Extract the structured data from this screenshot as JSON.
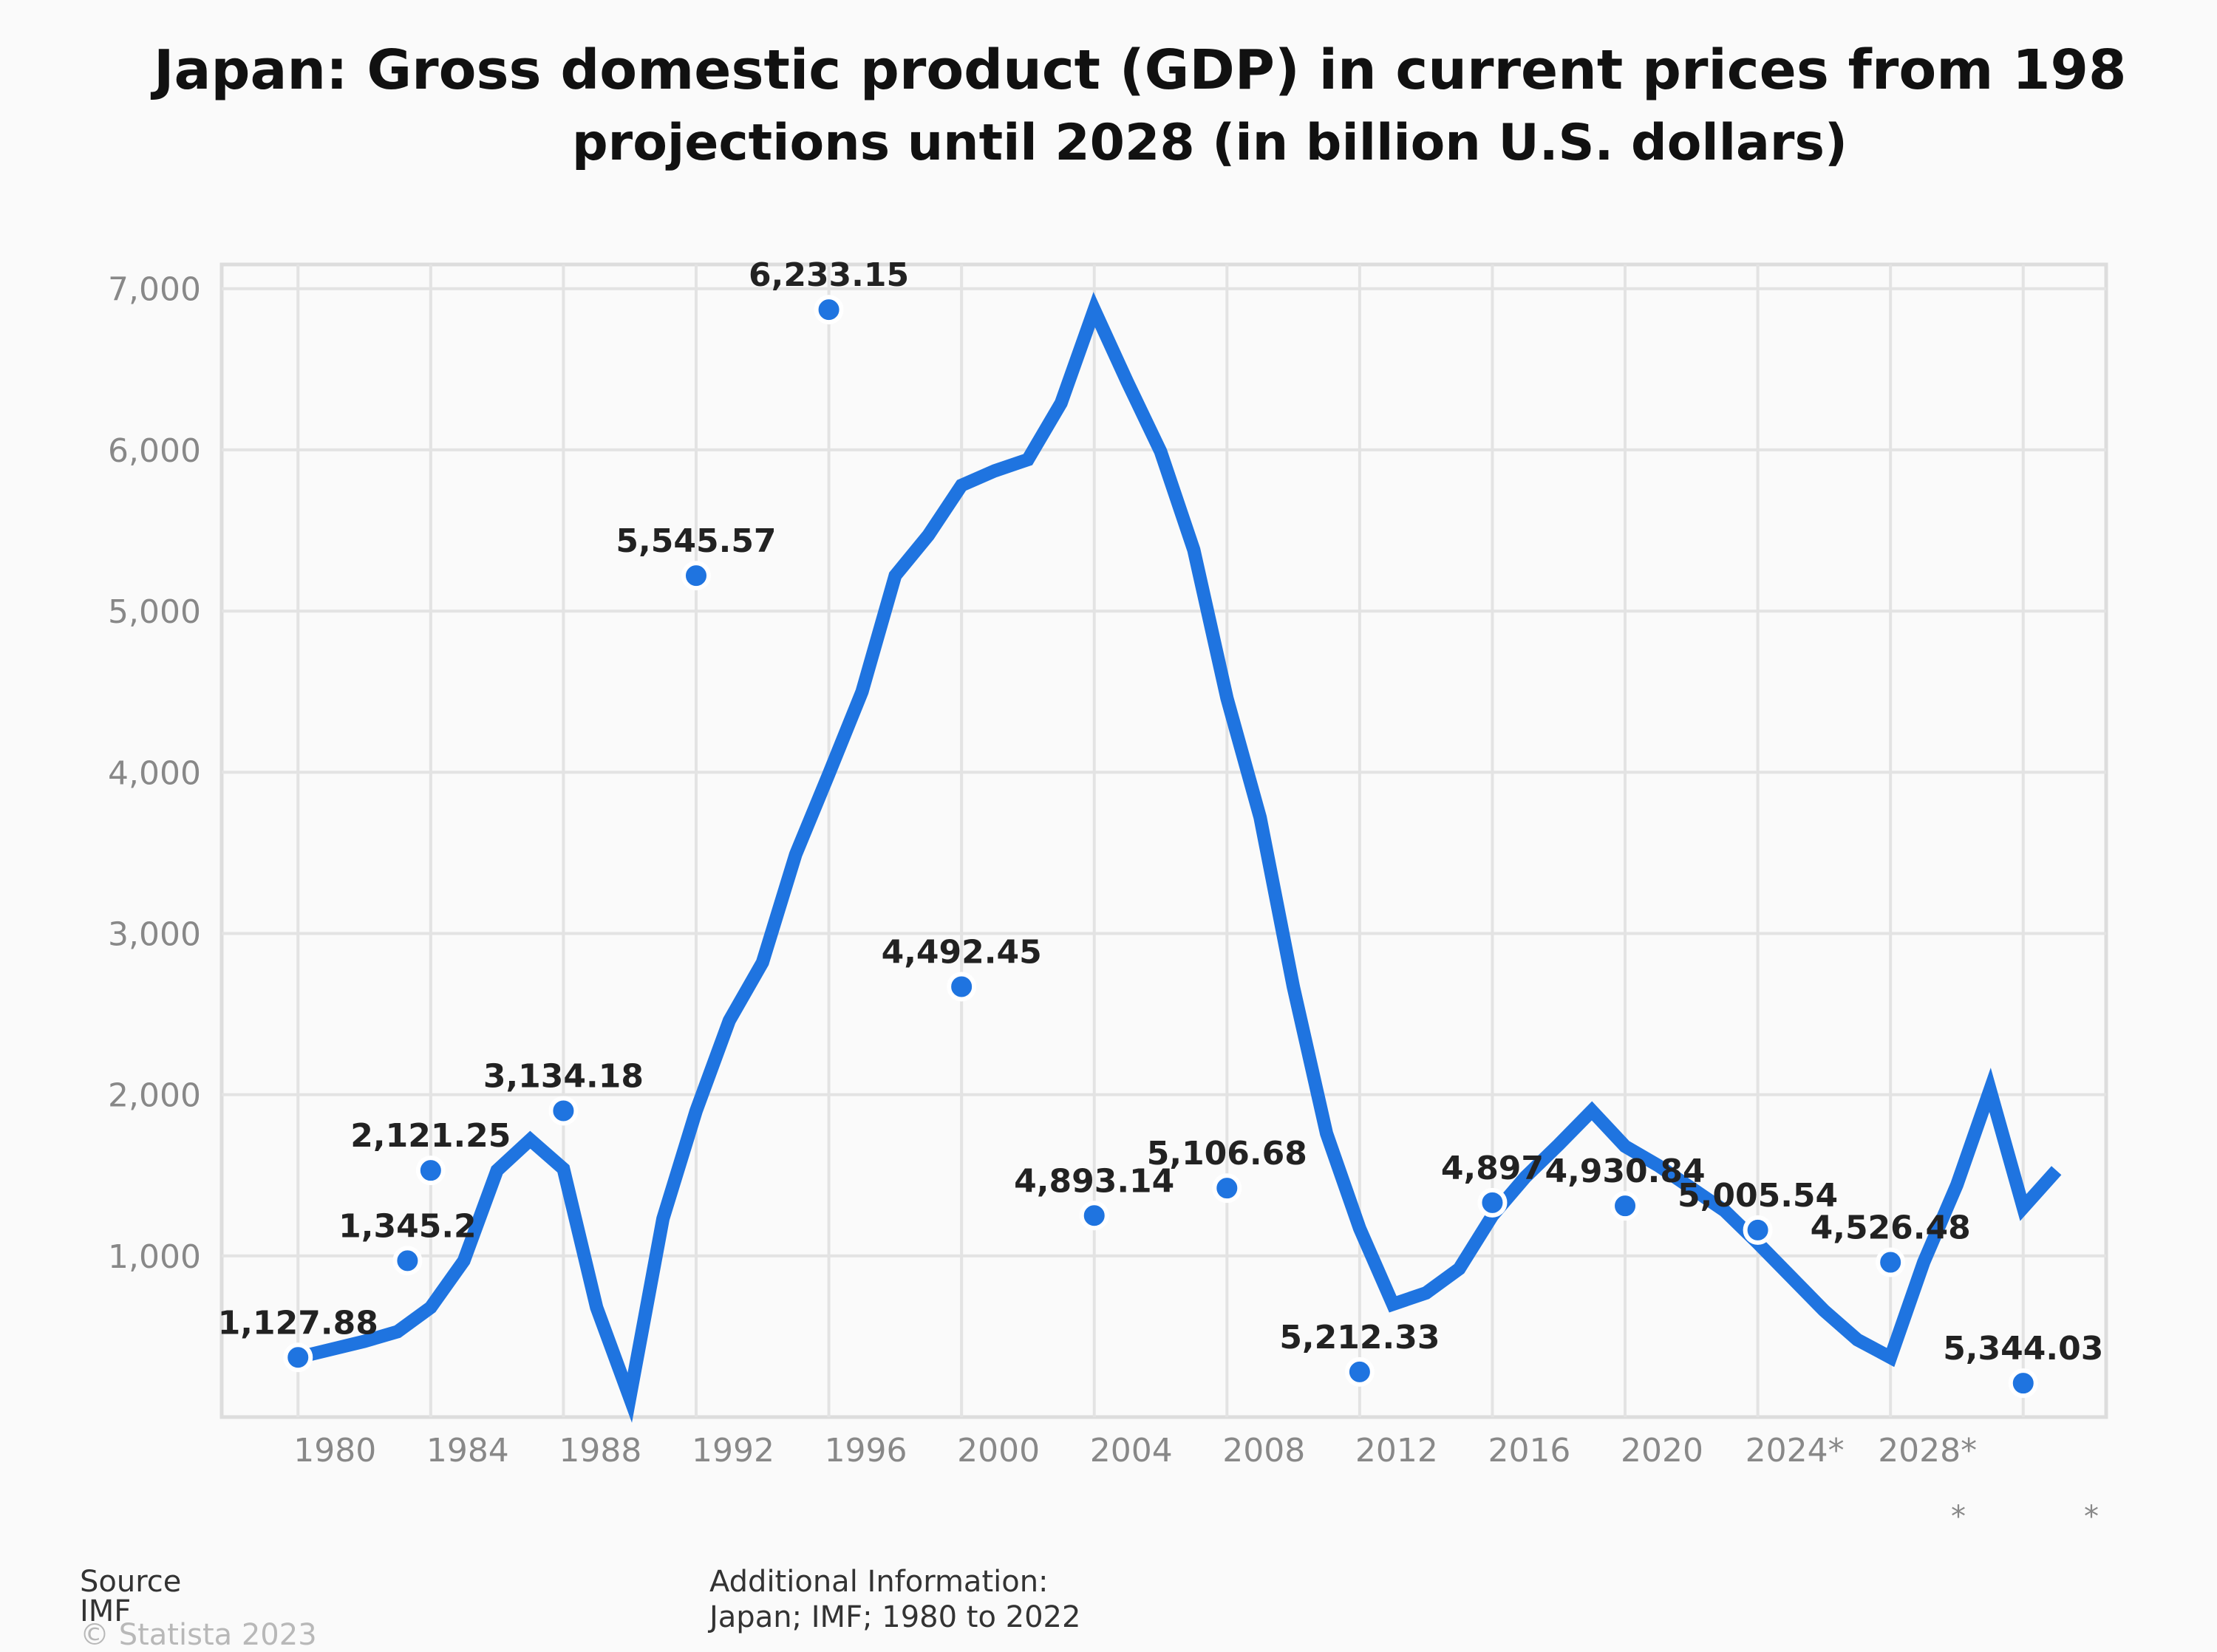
{
  "chart_data": {
    "type": "line",
    "title_line1": "Japan: Gross domestic product (GDP) in current prices from 198",
    "title_line2": "projections until 2028 (in billion U.S. dollars)",
    "x_tick_labels": [
      "1980",
      "1984",
      "1988",
      "1992",
      "1996",
      "2000",
      "2004",
      "2008",
      "2012",
      "2016",
      "2020",
      "2024*",
      "2028*"
    ],
    "x_extra_labels": [
      "*",
      "*"
    ],
    "y_tick_labels": [
      "1,000",
      "2,000",
      "3,000",
      "4,000",
      "5,000",
      "6,000",
      "7,000"
    ],
    "y_ticks": [
      1000,
      2000,
      3000,
      4000,
      5000,
      6000,
      7000
    ],
    "ylim": [
      0,
      7150
    ],
    "xlim": [
      1977.7,
      2034.5
    ],
    "grid": true,
    "line_color": "#1f74e0",
    "series": [
      {
        "x": [
          1980,
          1981,
          1982,
          1983,
          1984,
          1985,
          1986,
          1987,
          1988,
          1989,
          1990,
          1991,
          1992,
          1993,
          1994,
          1995,
          1996,
          1997,
          1998,
          1999,
          2000,
          2001,
          2002,
          2003,
          2004,
          2005,
          2006,
          2007,
          2008,
          2009,
          2010,
          2011,
          2012,
          2013,
          2014,
          2015,
          2016,
          2017,
          2018,
          2019,
          2020,
          2021,
          2022,
          2023,
          2024,
          2025,
          2026,
          2027,
          2028,
          2029,
          2030,
          2031,
          2032,
          2033
        ],
        "y": [
          370,
          420,
          470,
          530,
          680,
          970,
          1530,
          1720,
          1540,
          680,
          120,
          1230,
          1900,
          2460,
          2820,
          3490,
          3990,
          4500,
          5220,
          5470,
          5780,
          5870,
          5940,
          6290,
          6870,
          6420,
          5990,
          5380,
          4460,
          3720,
          2670,
          1760,
          1170,
          700,
          770,
          920,
          1250,
          1490,
          1690,
          1900,
          1680,
          1560,
          1420,
          1280,
          1080,
          870,
          660,
          480,
          370,
          960,
          1440,
          2030,
          1300,
          1530
        ]
      }
    ],
    "markers": [
      {
        "x": 1980,
        "y": 370,
        "label": "1,127.88"
      },
      {
        "x": 1983.3,
        "y": 970,
        "label": "1,345.2"
      },
      {
        "x": 1984,
        "y": 1530,
        "label": "2,121.25"
      },
      {
        "x": 1988,
        "y": 1900,
        "label": "3,134.18"
      },
      {
        "x": 1992,
        "y": 5220,
        "label": "5,545.57"
      },
      {
        "x": 1996,
        "y": 6870,
        "label": "6,233.15"
      },
      {
        "x": 2000,
        "y": 2670,
        "label": "4,492.45"
      },
      {
        "x": 2004,
        "y": 1250,
        "label": "4,893.14"
      },
      {
        "x": 2008,
        "y": 1420,
        "label": "5,106.68"
      },
      {
        "x": 2012,
        "y": 280,
        "label": "5,212.33"
      },
      {
        "x": 2016,
        "y": 1330,
        "label": "4,897"
      },
      {
        "x": 2020,
        "y": 1310,
        "label": "4,930.84"
      },
      {
        "x": 2024,
        "y": 1160,
        "label": "5,005.54"
      },
      {
        "x": 2028,
        "y": 960,
        "label": "4,526.48"
      },
      {
        "x": 2032,
        "y": 210,
        "label": "5,344.03"
      }
    ]
  },
  "footer": {
    "source_label": "Source",
    "source_value": "IMF",
    "copyright": "© Statista 2023",
    "additional_label": "Additional Information:",
    "additional_value": "Japan; IMF; 1980 to 2022"
  }
}
